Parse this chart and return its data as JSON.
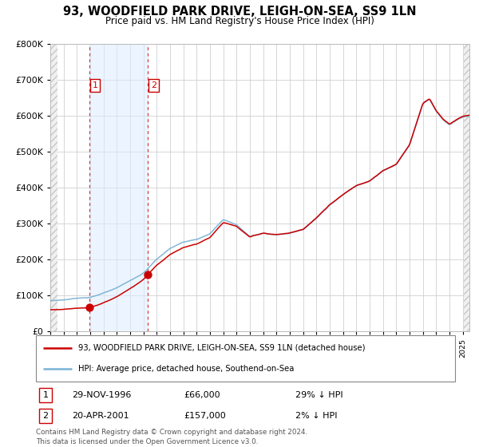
{
  "title": "93, WOODFIELD PARK DRIVE, LEIGH-ON-SEA, SS9 1LN",
  "subtitle": "Price paid vs. HM Land Registry's House Price Index (HPI)",
  "sale1_date_num": 1996.91,
  "sale1_price": 66000,
  "sale2_date_num": 2001.3,
  "sale2_price": 157000,
  "legend_line1": "93, WOODFIELD PARK DRIVE, LEIGH-ON-SEA, SS9 1LN (detached house)",
  "legend_line2": "HPI: Average price, detached house, Southend-on-Sea",
  "table_row1": [
    "1",
    "29-NOV-1996",
    "£66,000",
    "29% ↓ HPI"
  ],
  "table_row2": [
    "2",
    "20-APR-2001",
    "£157,000",
    "2% ↓ HPI"
  ],
  "footnote": "Contains HM Land Registry data © Crown copyright and database right 2024.\nThis data is licensed under the Open Government Licence v3.0.",
  "hpi_color": "#7ab3d4",
  "price_color": "#cc0000",
  "dot_color": "#cc0000",
  "vline_color": "#cc0000",
  "shade_color": "#ddeeff",
  "ylim": [
    0,
    800000
  ],
  "xlim_start": 1994.0,
  "xlim_end": 2025.5,
  "yticks": [
    0,
    100000,
    200000,
    300000,
    400000,
    500000,
    600000,
    700000,
    800000
  ],
  "hpi_key_points": [
    [
      1994.0,
      85000
    ],
    [
      1995.0,
      88000
    ],
    [
      1996.0,
      91000
    ],
    [
      1997.0,
      95000
    ],
    [
      1998.0,
      107000
    ],
    [
      1999.0,
      120000
    ],
    [
      2000.0,
      140000
    ],
    [
      2001.0,
      161000
    ],
    [
      2002.0,
      200000
    ],
    [
      2003.0,
      230000
    ],
    [
      2004.0,
      248000
    ],
    [
      2005.0,
      255000
    ],
    [
      2006.0,
      270000
    ],
    [
      2007.0,
      310000
    ],
    [
      2008.0,
      295000
    ],
    [
      2009.0,
      262000
    ],
    [
      2010.0,
      272000
    ],
    [
      2011.0,
      268000
    ],
    [
      2012.0,
      272000
    ],
    [
      2013.0,
      283000
    ],
    [
      2014.0,
      315000
    ],
    [
      2015.0,
      352000
    ],
    [
      2016.0,
      380000
    ],
    [
      2017.0,
      405000
    ],
    [
      2018.0,
      420000
    ],
    [
      2019.0,
      448000
    ],
    [
      2020.0,
      465000
    ],
    [
      2021.0,
      520000
    ],
    [
      2022.0,
      635000
    ],
    [
      2022.5,
      648000
    ],
    [
      2023.0,
      615000
    ],
    [
      2023.5,
      592000
    ],
    [
      2024.0,
      578000
    ],
    [
      2024.5,
      590000
    ],
    [
      2025.0,
      600000
    ],
    [
      2025.5,
      603000
    ]
  ],
  "price_ratio_before_sale1": 0.717,
  "price_ratio_after_sale2": 0.98
}
